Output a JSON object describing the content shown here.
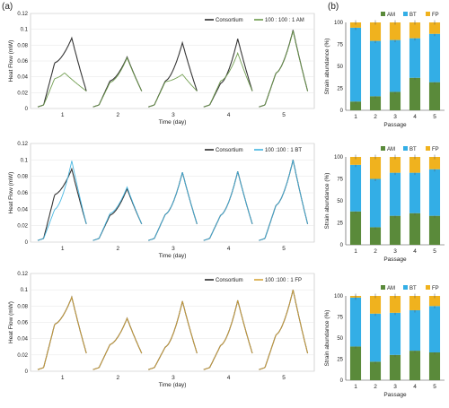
{
  "panel_labels": {
    "a": "(a)",
    "b": "(b)"
  },
  "colors": {
    "consortium": "#2b2b2b",
    "am_line": "#6b9a4a",
    "bt_line": "#41b4e0",
    "fp_line": "#d6a73a",
    "AM": "#5a8a3a",
    "BT": "#33aee6",
    "FP": "#f0b21e"
  },
  "chart_data": [
    {
      "type": "line",
      "panel": "a",
      "ylabel": "Heat Flow (mW)",
      "xlabel": "Time (day)",
      "ylim": [
        0,
        0.12
      ],
      "yticks": [
        "0",
        "0.02",
        "0.04",
        "0.06",
        "0.08",
        "0.1",
        "0.12"
      ],
      "xticks": [
        "1",
        "2",
        "3",
        "4",
        "5"
      ],
      "series": [
        {
          "name": "Consortium",
          "peaks": [
            0.089,
            0.065,
            0.083,
            0.088,
            0.099
          ],
          "shoulders": [
            0.058,
            0.035,
            0.035,
            0.032,
            0.045
          ]
        },
        {
          "name": "100 : 100 : 1 AM",
          "peaks": [
            0.045,
            0.064,
            0.043,
            0.07,
            0.098
          ],
          "shoulders": [
            0.038,
            0.033,
            0.034,
            0.035,
            0.045
          ]
        }
      ]
    },
    {
      "type": "line",
      "panel": "a",
      "ylabel": "Heat Flow (mW)",
      "xlabel": "Time (day)",
      "ylim": [
        0,
        0.12
      ],
      "yticks": [
        "0",
        "0.02",
        "0.04",
        "0.06",
        "0.08",
        "0.1",
        "0.12"
      ],
      "xticks": [
        "1",
        "2",
        "3",
        "4",
        "5"
      ],
      "series": [
        {
          "name": "Consortium",
          "peaks": [
            0.089,
            0.065,
            0.085,
            0.086,
            0.1
          ],
          "shoulders": [
            0.058,
            0.033,
            0.034,
            0.033,
            0.045
          ]
        },
        {
          "name": "100 :100 : 1  BT",
          "peaks": [
            0.099,
            0.067,
            0.085,
            0.086,
            0.1
          ],
          "shoulders": [
            0.04,
            0.035,
            0.034,
            0.033,
            0.045
          ]
        }
      ]
    },
    {
      "type": "line",
      "panel": "a",
      "ylabel": "Heat Flow (mW)",
      "xlabel": "Time (day)",
      "ylim": [
        0,
        0.12
      ],
      "yticks": [
        "0",
        "0.02",
        "0.04",
        "0.06",
        "0.08",
        "0.1",
        "0.12"
      ],
      "xticks": [
        "1",
        "2",
        "3",
        "4",
        "5"
      ],
      "series": [
        {
          "name": "Consortium",
          "peaks": [
            0.091,
            0.065,
            0.086,
            0.087,
            0.1
          ],
          "shoulders": [
            0.058,
            0.033,
            0.03,
            0.032,
            0.045
          ]
        },
        {
          "name": "100 :100 : 1  FP",
          "peaks": [
            0.091,
            0.065,
            0.086,
            0.087,
            0.1
          ],
          "shoulders": [
            0.058,
            0.033,
            0.03,
            0.032,
            0.045
          ]
        }
      ]
    },
    {
      "type": "bar",
      "stacked": true,
      "panel": "b",
      "ylabel": "Strain abundance (%)",
      "xlabel": "Passage",
      "ylim": [
        0,
        100
      ],
      "yticks": [
        "0",
        "25",
        "50",
        "75",
        "100"
      ],
      "categories": [
        "1",
        "2",
        "3",
        "4",
        "5"
      ],
      "series": [
        {
          "name": "AM",
          "values": [
            10,
            16,
            21,
            37,
            32
          ]
        },
        {
          "name": "BT",
          "values": [
            84,
            63,
            59,
            45,
            55
          ]
        },
        {
          "name": "FP",
          "values": [
            6,
            21,
            20,
            18,
            13
          ]
        }
      ]
    },
    {
      "type": "bar",
      "stacked": true,
      "panel": "b",
      "ylabel": "Strain abundance (%)",
      "xlabel": "Passage",
      "ylim": [
        0,
        100
      ],
      "yticks": [
        "0",
        "25",
        "50",
        "75",
        "100"
      ],
      "categories": [
        "1",
        "2",
        "3",
        "4",
        "5"
      ],
      "series": [
        {
          "name": "AM",
          "values": [
            38,
            20,
            33,
            36,
            33
          ]
        },
        {
          "name": "BT",
          "values": [
            53,
            55,
            49,
            46,
            53
          ]
        },
        {
          "name": "FP",
          "values": [
            9,
            25,
            18,
            18,
            14
          ]
        }
      ]
    },
    {
      "type": "bar",
      "stacked": true,
      "panel": "b",
      "ylabel": "Strain abundance (%)",
      "xlabel": "Passage",
      "ylim": [
        0,
        100
      ],
      "yticks": [
        "0",
        "25",
        "50",
        "75",
        "100"
      ],
      "categories": [
        "1",
        "2",
        "3",
        "4",
        "5"
      ],
      "series": [
        {
          "name": "AM",
          "values": [
            40,
            22,
            30,
            35,
            33
          ]
        },
        {
          "name": "BT",
          "values": [
            58,
            57,
            50,
            48,
            55
          ]
        },
        {
          "name": "FP",
          "values": [
            2,
            21,
            20,
            17,
            12
          ]
        }
      ]
    }
  ]
}
